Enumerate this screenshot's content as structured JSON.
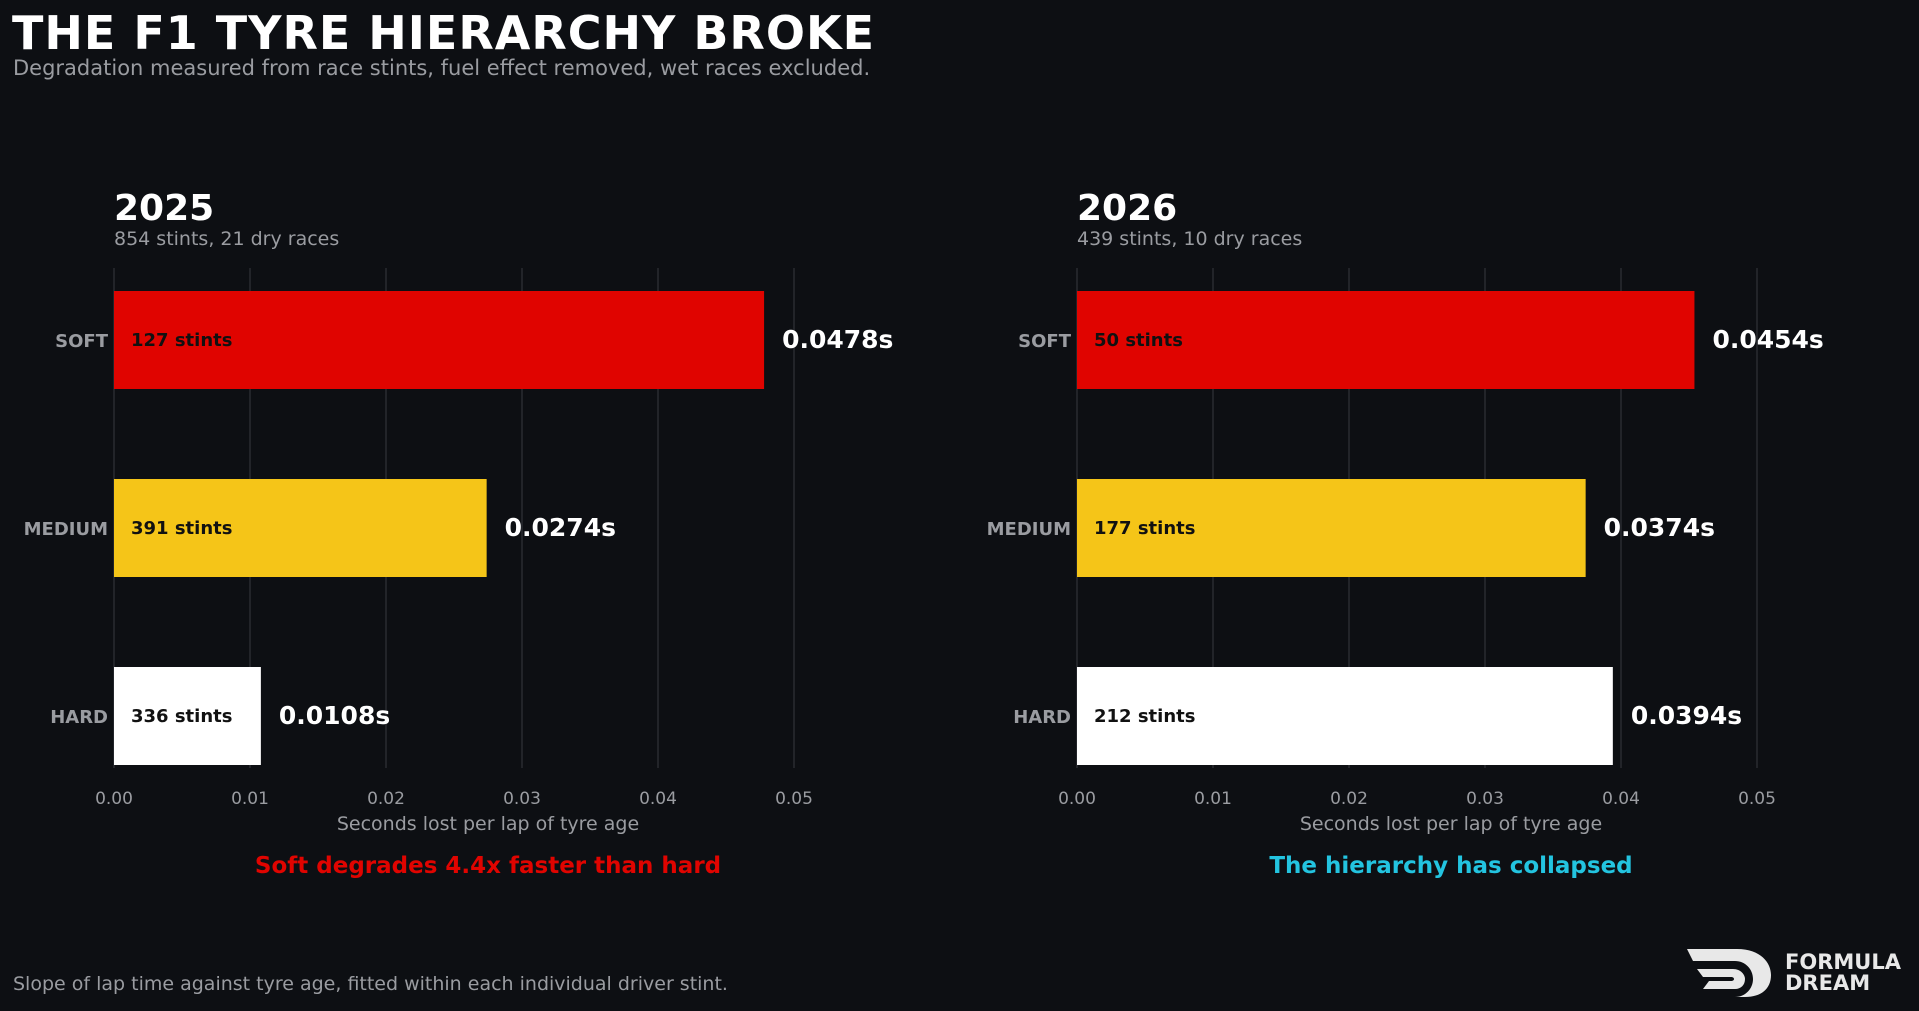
{
  "header": {
    "title": "THE F1 TYRE HIERARCHY BROKE",
    "subtitle": "Degradation measured from race stints, fuel effect removed, wet races excluded."
  },
  "footnote": "Slope of lap time against tyre age, fitted within each individual driver stint.",
  "logo": {
    "line1": "FORMULA",
    "line2": "DREAM",
    "icon": "formula-dream-logo"
  },
  "colors": {
    "background": "#0d0f13",
    "soft": "#e00400",
    "medium": "#f5c518",
    "hard": "#ffffff",
    "grid": "#2a2c31",
    "muted": "#9a9ca1",
    "annotation_2025": "#e00400",
    "annotation_2026": "#23c4e0"
  },
  "chart_data": [
    {
      "type": "bar",
      "orientation": "horizontal",
      "title": "2025",
      "subtitle": "854 stints, 21 dry races",
      "categories": [
        "SOFT",
        "MEDIUM",
        "HARD"
      ],
      "values": [
        0.0478,
        0.0274,
        0.0108
      ],
      "value_labels": [
        "0.0478s",
        "0.0274s",
        "0.0108s"
      ],
      "bar_labels": [
        "127 stints",
        "391 stints",
        "336 stints"
      ],
      "xlabel": "Seconds lost per lap of tyre age",
      "xlim": [
        0,
        0.055
      ],
      "xticks": [
        0.0,
        0.01,
        0.02,
        0.03,
        0.04,
        0.05
      ],
      "xtick_labels": [
        "0.00",
        "0.01",
        "0.02",
        "0.03",
        "0.04",
        "0.05"
      ],
      "grid": true,
      "annotation": "Soft degrades 4.4x faster than hard"
    },
    {
      "type": "bar",
      "orientation": "horizontal",
      "title": "2026",
      "subtitle": "439 stints, 10 dry races",
      "categories": [
        "SOFT",
        "MEDIUM",
        "HARD"
      ],
      "values": [
        0.0454,
        0.0374,
        0.0394
      ],
      "value_labels": [
        "0.0454s",
        "0.0374s",
        "0.0394s"
      ],
      "bar_labels": [
        "50 stints",
        "177 stints",
        "212 stints"
      ],
      "xlabel": "Seconds lost per lap of tyre age",
      "xlim": [
        0,
        0.055
      ],
      "xticks": [
        0.0,
        0.01,
        0.02,
        0.03,
        0.04,
        0.05
      ],
      "xtick_labels": [
        "0.00",
        "0.01",
        "0.02",
        "0.03",
        "0.04",
        "0.05"
      ],
      "grid": true,
      "annotation": "The hierarchy has collapsed"
    }
  ]
}
